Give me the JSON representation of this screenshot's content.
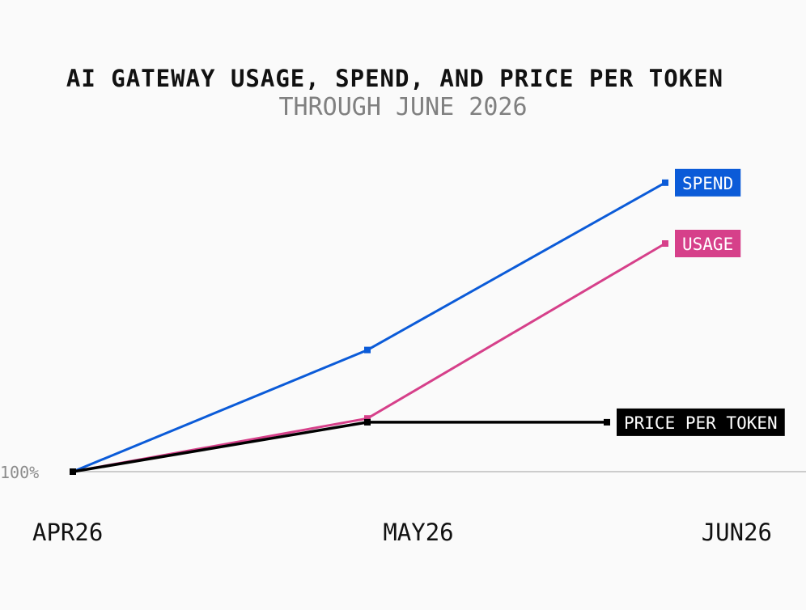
{
  "chart_data": {
    "type": "line",
    "title": "AI GATEWAY USAGE, SPEND, AND PRICE PER TOKEN",
    "subtitle": "THROUGH JUNE 2026",
    "categories": [
      "APR26",
      "MAY26",
      "JUN26"
    ],
    "baseline_label": "100%",
    "baseline_value": 100,
    "ylim": [
      100,
      500
    ],
    "grid": false,
    "legend": "direct-labels-at-line-ends",
    "series": [
      {
        "name": "SPEND",
        "color": "#0b5bd8",
        "values": [
          100,
          260,
          480
        ]
      },
      {
        "name": "USAGE",
        "color": "#d6408a",
        "values": [
          100,
          170,
          400
        ]
      },
      {
        "name": "PRICE PER TOKEN",
        "color": "#000000",
        "values": [
          100,
          165,
          165
        ]
      }
    ]
  }
}
